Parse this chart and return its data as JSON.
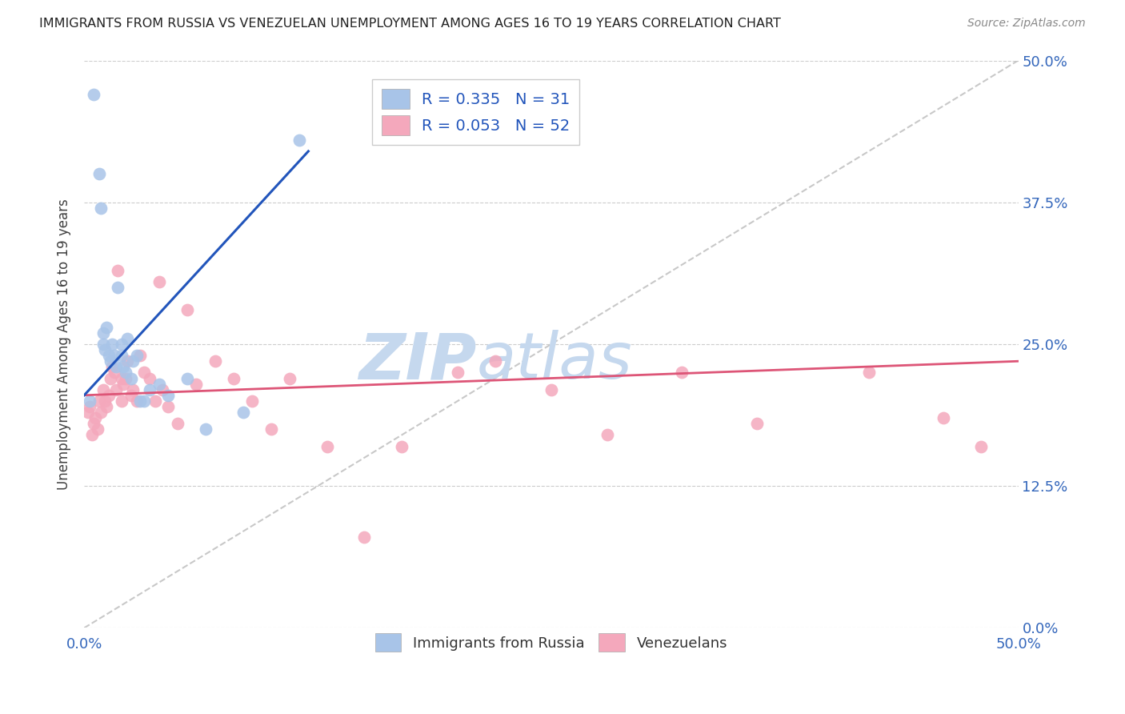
{
  "title": "IMMIGRANTS FROM RUSSIA VS VENEZUELAN UNEMPLOYMENT AMONG AGES 16 TO 19 YEARS CORRELATION CHART",
  "source": "Source: ZipAtlas.com",
  "ylabel": "Unemployment Among Ages 16 to 19 years",
  "ytick_labels": [
    "0.0%",
    "12.5%",
    "25.0%",
    "37.5%",
    "50.0%"
  ],
  "ytick_values": [
    0.0,
    12.5,
    25.0,
    37.5,
    50.0
  ],
  "xlim": [
    0.0,
    50.0
  ],
  "ylim": [
    0.0,
    50.0
  ],
  "russia_R": 0.335,
  "russia_N": 31,
  "venezuela_R": 0.053,
  "venezuela_N": 52,
  "russia_color": "#a8c4e8",
  "venezuela_color": "#f4a8bc",
  "russia_line_color": "#2255bb",
  "venezuela_line_color": "#dd5577",
  "dashed_line_color": "#bbbbbb",
  "watermark_zip_color": "#c5d8ee",
  "watermark_atlas_color": "#c5d8ee",
  "russia_x": [
    0.3,
    0.5,
    0.8,
    0.9,
    1.0,
    1.0,
    1.1,
    1.2,
    1.3,
    1.4,
    1.5,
    1.6,
    1.7,
    1.8,
    2.0,
    2.0,
    2.1,
    2.2,
    2.3,
    2.5,
    2.6,
    2.8,
    3.0,
    3.2,
    3.5,
    4.0,
    4.5,
    5.5,
    6.5,
    8.5,
    11.5
  ],
  "russia_y": [
    20.0,
    47.0,
    40.0,
    37.0,
    26.0,
    25.0,
    24.5,
    26.5,
    24.0,
    23.5,
    25.0,
    24.0,
    23.0,
    30.0,
    25.0,
    24.0,
    23.0,
    22.5,
    25.5,
    22.0,
    23.5,
    24.0,
    20.0,
    20.0,
    21.0,
    21.5,
    20.5,
    22.0,
    17.5,
    19.0,
    43.0
  ],
  "venezuela_x": [
    0.2,
    0.3,
    0.4,
    0.5,
    0.6,
    0.7,
    0.8,
    0.9,
    1.0,
    1.1,
    1.2,
    1.3,
    1.4,
    1.5,
    1.6,
    1.7,
    1.8,
    2.0,
    2.0,
    2.1,
    2.2,
    2.3,
    2.5,
    2.6,
    2.8,
    3.0,
    3.2,
    3.5,
    3.8,
    4.0,
    4.2,
    4.5,
    5.0,
    5.5,
    6.0,
    7.0,
    8.0,
    9.0,
    10.0,
    11.0,
    13.0,
    15.0,
    17.0,
    20.0,
    22.0,
    25.0,
    28.0,
    32.0,
    36.0,
    42.0,
    46.0,
    48.0
  ],
  "venezuela_y": [
    19.0,
    19.5,
    17.0,
    18.0,
    18.5,
    17.5,
    20.0,
    19.0,
    21.0,
    20.0,
    19.5,
    20.5,
    22.0,
    23.0,
    22.5,
    21.0,
    31.5,
    22.0,
    20.0,
    21.5,
    22.0,
    23.5,
    20.5,
    21.0,
    20.0,
    24.0,
    22.5,
    22.0,
    20.0,
    30.5,
    21.0,
    19.5,
    18.0,
    28.0,
    21.5,
    23.5,
    22.0,
    20.0,
    17.5,
    22.0,
    16.0,
    8.0,
    16.0,
    22.5,
    23.5,
    21.0,
    17.0,
    22.5,
    18.0,
    22.5,
    18.5,
    16.0
  ]
}
